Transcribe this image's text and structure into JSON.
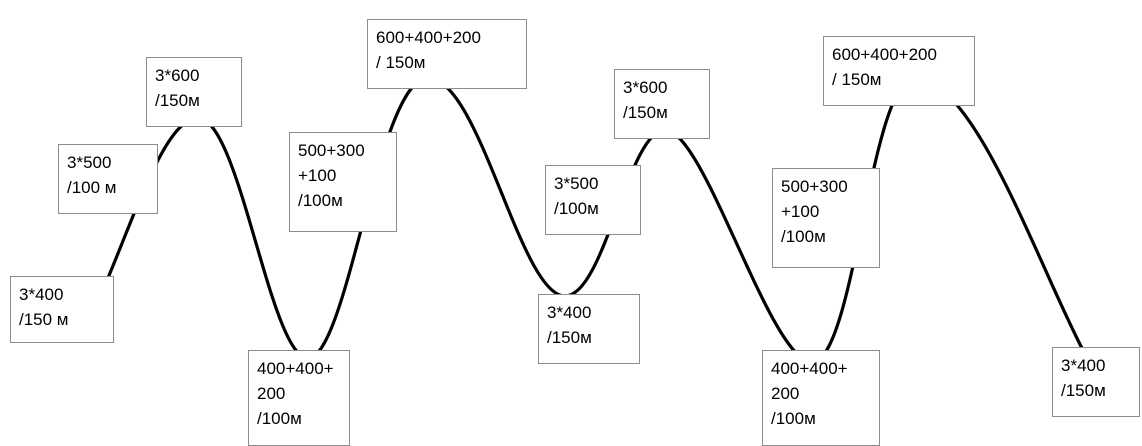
{
  "diagram": {
    "colors": {
      "curve": "#000000",
      "box_border": "#8c8c8c",
      "text": "#000000"
    },
    "labels": [
      {
        "id": "b1",
        "lines": [
          "3*400",
          "/150 м"
        ]
      },
      {
        "id": "b2",
        "lines": [
          "3*500",
          "/100 м"
        ]
      },
      {
        "id": "b3",
        "lines": [
          "3*600",
          "/150м"
        ]
      },
      {
        "id": "b4",
        "lines": [
          "400+400+",
          "200",
          "/100м"
        ]
      },
      {
        "id": "b5",
        "lines": [
          "500+300",
          "+100",
          "/100м"
        ]
      },
      {
        "id": "b6",
        "lines": [
          "600+400+200",
          "/ 150м"
        ]
      },
      {
        "id": "b7",
        "lines": [
          "3*500",
          "/100м"
        ]
      },
      {
        "id": "b8",
        "lines": [
          "3*400",
          "/150м"
        ]
      },
      {
        "id": "b9",
        "lines": [
          "3*600",
          "/150м"
        ]
      },
      {
        "id": "b10",
        "lines": [
          "400+400+",
          "200",
          "/100м"
        ]
      },
      {
        "id": "b11",
        "lines": [
          "500+300",
          "+100",
          "/100м"
        ]
      },
      {
        "id": "b12",
        "lines": [
          "600+400+200",
          "/ 150м"
        ]
      },
      {
        "id": "b13",
        "lines": [
          "3*400",
          "/150м"
        ]
      }
    ]
  }
}
